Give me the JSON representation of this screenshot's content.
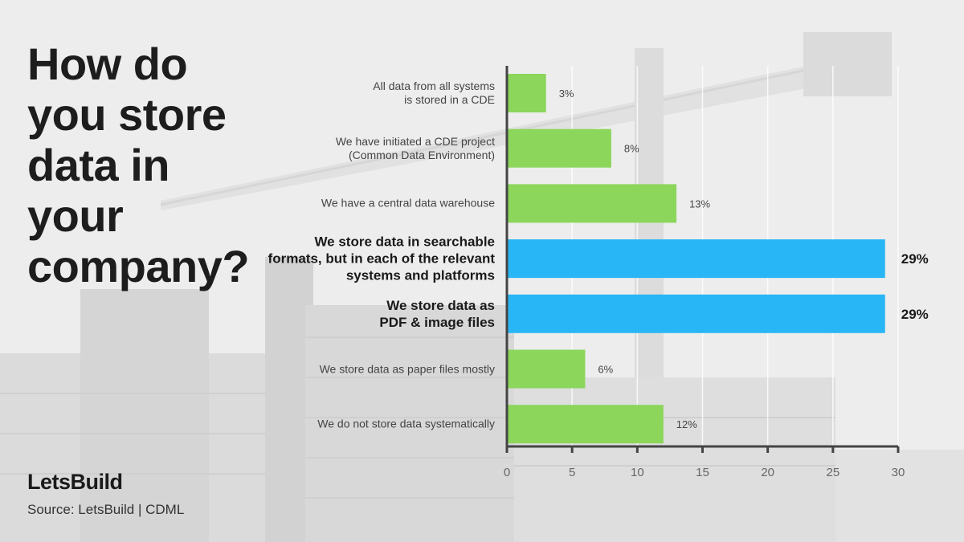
{
  "title_lines": [
    "How do",
    "you store",
    "data in",
    "your",
    "company?"
  ],
  "brand": "LetsBuild",
  "source": "Source: LetsBuild | CDML",
  "colors": {
    "primary": "#8bd65b",
    "highlight": "#29b6f6",
    "axis": "#444444"
  },
  "chart_data": {
    "type": "bar",
    "orientation": "horizontal",
    "categories": [
      [
        "All data from all systems",
        "is stored in a CDE"
      ],
      [
        "We have initiated a CDE project",
        "(Common Data Environment)"
      ],
      [
        "We have a central data warehouse"
      ],
      [
        "We store data in searchable",
        "formats, but in each of the relevant",
        "systems and platforms"
      ],
      [
        "We store data as",
        "PDF & image files"
      ],
      [
        "We store data as paper files mostly"
      ],
      [
        "We do not store data systematically"
      ]
    ],
    "values": [
      3,
      8,
      13,
      29,
      29,
      6,
      12
    ],
    "value_labels": [
      "3%",
      "8%",
      "13%",
      "29%",
      "29%",
      "6%",
      "12%"
    ],
    "highlighted": [
      false,
      false,
      false,
      true,
      true,
      false,
      false
    ],
    "xlim": [
      0,
      30
    ],
    "xticks": [
      0,
      5,
      10,
      15,
      20,
      25,
      30
    ],
    "grid": true
  }
}
